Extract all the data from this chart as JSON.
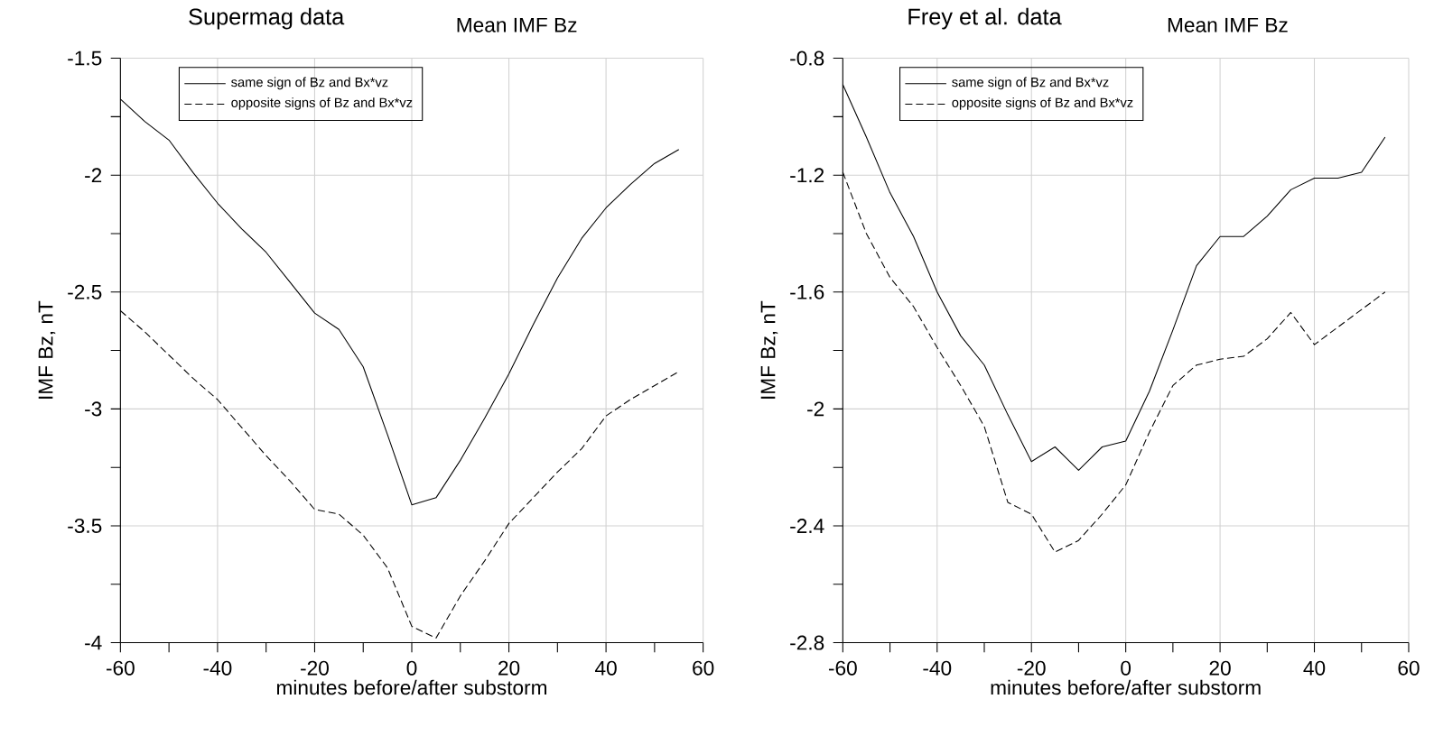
{
  "chart_data": [
    {
      "type": "line",
      "title": "Supermag data",
      "subtitle": "Mean IMF Bz",
      "xlabel": "minutes before/after substorm",
      "ylabel": "IMF Bz, nT",
      "x": [
        -60,
        -55,
        -50,
        -45,
        -40,
        -35,
        -30,
        -25,
        -20,
        -15,
        -10,
        -5,
        0,
        5,
        10,
        15,
        20,
        25,
        30,
        35,
        40,
        45,
        50,
        55
      ],
      "series": [
        {
          "name": "same sign of Bz and Bx*vz",
          "color": "#000000",
          "line_style": "solid",
          "values": [
            -1.675,
            -1.77,
            -1.85,
            -1.99,
            -2.12,
            -2.23,
            -2.33,
            -2.46,
            -2.59,
            -2.66,
            -2.82,
            -3.11,
            -3.41,
            -3.38,
            -3.22,
            -3.04,
            -2.85,
            -2.64,
            -2.44,
            -2.27,
            -2.14,
            -2.04,
            -1.95,
            -1.89
          ]
        },
        {
          "name": "opposite signs of Bz and Bx*vz",
          "color": "#000000",
          "line_style": "dashed",
          "values": [
            -2.58,
            -2.67,
            -2.77,
            -2.87,
            -2.96,
            -3.08,
            -3.2,
            -3.31,
            -3.43,
            -3.45,
            -3.54,
            -3.68,
            -3.93,
            -3.98,
            -3.8,
            -3.65,
            -3.49,
            -3.38,
            -3.27,
            -3.17,
            -3.03,
            -2.96,
            -2.9,
            -2.84
          ]
        }
      ],
      "xlim": [
        -60,
        60
      ],
      "ylim": [
        -4,
        -1.5
      ],
      "xticks": [
        -60,
        {
          "value": -50,
          "label": null
        },
        -40,
        {
          "value": -30,
          "label": null
        },
        -20,
        {
          "value": -10,
          "label": null
        },
        0,
        {
          "value": 10,
          "label": null
        },
        20,
        {
          "value": 30,
          "label": null
        },
        40,
        {
          "value": 50,
          "label": null
        },
        60
      ],
      "yticks": [
        -4,
        {
          "value": -3.75,
          "label": null
        },
        -3.5,
        {
          "value": -3.25,
          "label": null
        },
        -3,
        {
          "value": -2.75,
          "label": null
        },
        -2.5,
        {
          "value": -2.25,
          "label": null
        },
        -2,
        {
          "value": -1.75,
          "label": null
        },
        -1.5
      ],
      "grid": true,
      "legend": "top left"
    },
    {
      "type": "line",
      "title": "Frey et al. data",
      "subtitle": "Mean IMF Bz",
      "xlabel": "minutes before/after substorm",
      "ylabel": "IMF Bz, nT",
      "x": [
        -60,
        -55,
        -50,
        -45,
        -40,
        -35,
        -30,
        -25,
        -20,
        -15,
        -10,
        -5,
        0,
        5,
        10,
        15,
        20,
        25,
        30,
        35,
        40,
        45,
        50,
        55
      ],
      "series": [
        {
          "name": "same sign of Bz and Bx*vz",
          "color": "#000000",
          "line_style": "solid",
          "values": [
            -0.89,
            -1.07,
            -1.26,
            -1.41,
            -1.6,
            -1.75,
            -1.85,
            -2.02,
            -2.18,
            -2.13,
            -2.21,
            -2.13,
            -2.11,
            -1.94,
            -1.73,
            -1.51,
            -1.41,
            -1.41,
            -1.34,
            -1.25,
            -1.21,
            -1.21,
            -1.19,
            -1.07
          ]
        },
        {
          "name": "opposite signs of Bz and Bx*vz",
          "color": "#000000",
          "line_style": "dashed",
          "values": [
            -1.19,
            -1.4,
            -1.55,
            -1.65,
            -1.79,
            -1.92,
            -2.06,
            -2.32,
            -2.36,
            -2.49,
            -2.45,
            -2.36,
            -2.26,
            -2.08,
            -1.92,
            -1.85,
            -1.83,
            -1.82,
            -1.76,
            -1.67,
            -1.78,
            -1.72,
            -1.66,
            -1.6
          ]
        }
      ],
      "xlim": [
        -60,
        60
      ],
      "ylim": [
        -2.8,
        -0.8
      ],
      "xticks": [
        -60,
        {
          "value": -50,
          "label": null
        },
        -40,
        {
          "value": -30,
          "label": null
        },
        -20,
        {
          "value": -10,
          "label": null
        },
        0,
        {
          "value": 10,
          "label": null
        },
        20,
        {
          "value": 30,
          "label": null
        },
        40,
        {
          "value": 50,
          "label": null
        },
        60
      ],
      "yticks": [
        -2.8,
        {
          "value": -2.6,
          "label": null
        },
        -2.4,
        {
          "value": -2.2,
          "label": null
        },
        -2,
        {
          "value": -1.8,
          "label": null
        },
        -1.6,
        {
          "value": -1.4,
          "label": null
        },
        -1.2,
        {
          "value": -1,
          "label": null
        },
        -0.8
      ],
      "grid": true,
      "legend": "top left"
    }
  ]
}
